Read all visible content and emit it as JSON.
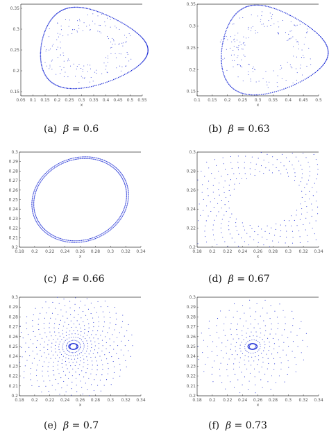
{
  "chart_data": [
    {
      "id": "a",
      "type": "scatter",
      "caption": {
        "label": "(a)",
        "symbol": "β",
        "value": "0.6"
      },
      "xlabel": "x",
      "ylabel": "",
      "xlim": [
        0.05,
        0.35
      ],
      "ylim": [
        0.15,
        0.35
      ],
      "xticks": [
        "0.05",
        "0.1",
        "0.15",
        "0.2",
        "0.25",
        "0.3",
        "0.35",
        "0.4",
        "0.45",
        "0.5",
        "0.55"
      ],
      "xtick_values": [
        0.05,
        0.1,
        0.15,
        0.2,
        0.25,
        0.3,
        0.35,
        0.4,
        0.45,
        0.5,
        0.55
      ],
      "yticks": [
        "0.15",
        "0.2",
        "0.25",
        "0.3",
        "0.35"
      ],
      "ytick_values": [
        0.15,
        0.2,
        0.25,
        0.3,
        0.35
      ],
      "xrange": [
        0.05,
        0.55
      ],
      "yrange": [
        0.14,
        0.36
      ],
      "shape": "cycle",
      "center": [
        0.32,
        0.255
      ],
      "rx": 0.22,
      "ry": 0.095,
      "cycle_points": 220,
      "interior_points": 160,
      "interior_seed": 3
    },
    {
      "id": "b",
      "type": "scatter",
      "caption": {
        "label": "(b)",
        "symbol": "β",
        "value": "0.63"
      },
      "xlabel": "x",
      "ylabel": "",
      "xticks": [
        "0.1",
        "0.15",
        "0.2",
        "0.25",
        "0.3",
        "0.35",
        "0.4",
        "0.45",
        "0.5"
      ],
      "xtick_values": [
        0.1,
        0.15,
        0.2,
        0.25,
        0.3,
        0.35,
        0.4,
        0.45,
        0.5
      ],
      "yticks": [
        "0.15",
        "0.2",
        "0.25",
        "0.3",
        "0.35"
      ],
      "ytick_values": [
        0.15,
        0.2,
        0.25,
        0.3,
        0.35
      ],
      "xrange": [
        0.1,
        0.5
      ],
      "yrange": [
        0.14,
        0.35
      ],
      "shape": "cycle",
      "center": [
        0.33,
        0.245
      ],
      "rx": 0.175,
      "ry": 0.1,
      "cycle_points": 200,
      "interior_points": 170,
      "interior_seed": 7
    },
    {
      "id": "c",
      "type": "scatter",
      "caption": {
        "label": "(c)",
        "symbol": "β",
        "value": "0.66"
      },
      "xlabel": "x",
      "ylabel": "",
      "xticks": [
        "0.18",
        "0.2",
        "0.22",
        "0.24",
        "0.26",
        "0.28",
        "0.3",
        "0.32",
        "0.34"
      ],
      "xtick_values": [
        0.18,
        0.2,
        0.22,
        0.24,
        0.26,
        0.28,
        0.3,
        0.32,
        0.34
      ],
      "yticks": [
        "0.2",
        "0.21",
        "0.22",
        "0.23",
        "0.24",
        "0.25",
        "0.26",
        "0.27",
        "0.28",
        "0.29",
        "0.3"
      ],
      "ytick_values": [
        0.2,
        0.21,
        0.22,
        0.23,
        0.24,
        0.25,
        0.26,
        0.27,
        0.28,
        0.29,
        0.3
      ],
      "xrange": [
        0.18,
        0.34
      ],
      "yrange": [
        0.2,
        0.3
      ],
      "shape": "thin-cycle",
      "center": [
        0.26,
        0.25
      ],
      "rx": 0.065,
      "ry": 0.045,
      "tilt": 0.35,
      "cycle_points": 260,
      "interior_points": 0,
      "interior_seed": 1
    },
    {
      "id": "d",
      "type": "scatter",
      "caption": {
        "label": "(d)",
        "symbol": "β",
        "value": "0.67"
      },
      "xlabel": "x",
      "ylabel": "",
      "xticks": [
        "0.18",
        "0.2",
        "0.22",
        "0.24",
        "0.26",
        "0.28",
        "0.3",
        "0.32",
        "0.34"
      ],
      "xtick_values": [
        0.18,
        0.2,
        0.22,
        0.24,
        0.26,
        0.28,
        0.3,
        0.32,
        0.34
      ],
      "yticks": [
        "0.2",
        "0.22",
        "0.24",
        "0.26",
        "0.28",
        "0.3"
      ],
      "ytick_values": [
        0.2,
        0.22,
        0.24,
        0.26,
        0.28,
        0.3
      ],
      "xrange": [
        0.18,
        0.34
      ],
      "yrange": [
        0.2,
        0.3
      ],
      "shape": "spiral-out",
      "center": [
        0.27,
        0.25
      ],
      "rx": 0.05,
      "ry": 0.028,
      "tilt": 0.3,
      "arms": 26,
      "arm_points": 14
    },
    {
      "id": "e",
      "type": "scatter",
      "caption": {
        "label": "(e)",
        "symbol": "β",
        "value": "0.7"
      },
      "xlabel": "x",
      "ylabel": "",
      "xticks": [
        "0.18",
        "0.2",
        "0.22",
        "0.24",
        "0.26",
        "0.28",
        "0.3",
        "0.32",
        "0.34"
      ],
      "xtick_values": [
        0.18,
        0.2,
        0.22,
        0.24,
        0.26,
        0.28,
        0.3,
        0.32,
        0.34
      ],
      "yticks": [
        "0.2",
        "0.21",
        "0.22",
        "0.23",
        "0.24",
        "0.25",
        "0.26",
        "0.27",
        "0.28",
        "0.29",
        "0.3"
      ],
      "ytick_values": [
        0.2,
        0.21,
        0.22,
        0.23,
        0.24,
        0.25,
        0.26,
        0.27,
        0.28,
        0.29,
        0.3
      ],
      "xrange": [
        0.18,
        0.34
      ],
      "yrange": [
        0.2,
        0.3
      ],
      "shape": "spiral-in",
      "center": [
        0.251,
        0.25
      ],
      "rx": 0.075,
      "ry": 0.05,
      "tilt": 0.25,
      "arms": 30,
      "arm_points": 16
    },
    {
      "id": "f",
      "type": "scatter",
      "caption": {
        "label": "(f)",
        "symbol": "β",
        "value": "0.73"
      },
      "xlabel": "x",
      "ylabel": "",
      "xticks": [
        "0.18",
        "0.2",
        "0.22",
        "0.24",
        "0.26",
        "0.28",
        "0.3",
        "0.32",
        "0.34"
      ],
      "xtick_values": [
        0.18,
        0.2,
        0.22,
        0.24,
        0.26,
        0.28,
        0.3,
        0.32,
        0.34
      ],
      "yticks": [
        "0.2",
        "0.21",
        "0.22",
        "0.23",
        "0.24",
        "0.25",
        "0.26",
        "0.27",
        "0.28",
        "0.29",
        "0.3"
      ],
      "ytick_values": [
        0.2,
        0.21,
        0.22,
        0.23,
        0.24,
        0.25,
        0.26,
        0.27,
        0.28,
        0.29,
        0.3
      ],
      "xrange": [
        0.18,
        0.34
      ],
      "yrange": [
        0.2,
        0.3
      ],
      "shape": "spiral-in",
      "center": [
        0.253,
        0.25
      ],
      "rx": 0.07,
      "ry": 0.045,
      "tilt": 0.3,
      "arms": 22,
      "arm_points": 12
    }
  ],
  "colors": {
    "points": "#1f2fd6",
    "axis": "#333333",
    "tick_text": "#555555"
  }
}
